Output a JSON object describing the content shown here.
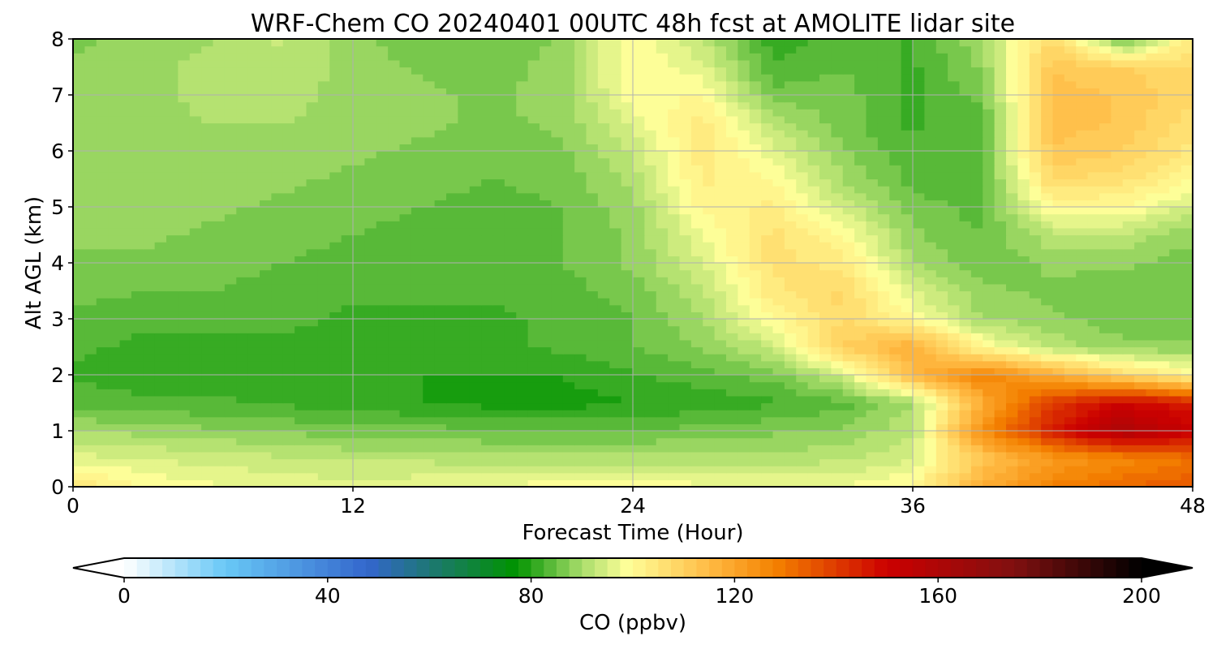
{
  "chart_data": {
    "type": "heatmap",
    "title": "WRF-Chem CO  20240401 00UTC 48h fcst at AMOLITE lidar site",
    "xlabel": "Forecast Time (Hour)",
    "ylabel": "Alt AGL (km)",
    "xlim": [
      0,
      48
    ],
    "ylim": [
      0,
      8
    ],
    "xticks": [
      "0",
      "12",
      "24",
      "36",
      "48"
    ],
    "yticks": [
      "0",
      "1",
      "2",
      "3",
      "4",
      "5",
      "6",
      "7",
      "8"
    ],
    "grid": true,
    "x": [
      0,
      3,
      6,
      9,
      12,
      15,
      18,
      21,
      24,
      27,
      30,
      33,
      36,
      39,
      42,
      45,
      48
    ],
    "y": [
      0,
      0.5,
      1,
      1.5,
      2,
      2.5,
      3,
      3.5,
      4,
      4.5,
      5,
      5.5,
      6,
      6.5,
      7,
      7.5,
      8
    ],
    "z": [
      [
        105,
        100,
        98,
        97,
        96,
        97,
        98,
        99,
        100,
        98,
        98,
        98,
        100,
        118,
        128,
        132,
        135
      ],
      [
        96,
        95,
        94,
        93,
        92,
        92,
        91,
        91,
        91,
        91,
        91,
        92,
        95,
        112,
        122,
        126,
        130
      ],
      [
        90,
        89,
        88,
        87,
        86,
        86,
        85,
        85,
        85,
        86,
        87,
        88,
        92,
        125,
        145,
        160,
        152
      ],
      [
        84,
        83,
        83,
        82,
        81,
        80,
        79,
        79,
        80,
        81,
        82,
        84,
        90,
        118,
        140,
        150,
        145
      ],
      [
        82,
        81,
        81,
        81,
        81,
        80,
        80,
        80,
        82,
        84,
        86,
        94,
        115,
        128,
        118,
        108,
        100
      ],
      [
        83,
        82,
        82,
        82,
        82,
        82,
        82,
        83,
        85,
        88,
        93,
        110,
        118,
        100,
        92,
        88,
        88
      ],
      [
        84,
        83,
        83,
        83,
        82,
        82,
        82,
        83,
        85,
        90,
        100,
        108,
        100,
        90,
        88,
        86,
        86
      ],
      [
        86,
        85,
        85,
        84,
        83,
        83,
        83,
        84,
        86,
        92,
        104,
        108,
        95,
        88,
        87,
        86,
        85
      ],
      [
        87,
        87,
        86,
        85,
        84,
        84,
        84,
        85,
        88,
        95,
        106,
        104,
        90,
        86,
        88,
        88,
        86
      ],
      [
        88,
        88,
        87,
        86,
        85,
        84,
        84,
        85,
        88,
        97,
        106,
        100,
        88,
        85,
        92,
        92,
        88
      ],
      [
        89,
        89,
        88,
        87,
        86,
        85,
        84,
        85,
        89,
        101,
        103,
        94,
        86,
        84,
        100,
        100,
        94
      ],
      [
        89,
        90,
        89,
        88,
        87,
        86,
        85,
        86,
        91,
        103,
        100,
        90,
        84,
        84,
        108,
        106,
        100
      ],
      [
        89,
        90,
        90,
        89,
        88,
        87,
        86,
        87,
        93,
        104,
        96,
        88,
        83,
        84,
        112,
        110,
        104
      ],
      [
        88,
        89,
        90,
        90,
        89,
        88,
        87,
        88,
        96,
        104,
        92,
        86,
        82,
        84,
        114,
        112,
        106
      ],
      [
        88,
        89,
        91,
        91,
        89,
        88,
        87,
        89,
        99,
        100,
        86,
        86,
        82,
        86,
        114,
        112,
        108
      ],
      [
        88,
        89,
        91,
        92,
        89,
        87,
        86,
        89,
        100,
        96,
        83,
        85,
        82,
        88,
        112,
        110,
        108
      ],
      [
        87,
        88,
        90,
        93,
        88,
        86,
        85,
        88,
        100,
        92,
        81,
        84,
        82,
        90,
        108,
        84,
        104
      ]
    ],
    "colorbar": {
      "label": "CO  (ppbv)",
      "min": 0,
      "max": 200,
      "step": 2.5,
      "ticks": [
        "0",
        "40",
        "80",
        "120",
        "160",
        "200"
      ],
      "extend": "both",
      "colors": [
        {
          "v": 0,
          "c": "#ffffff"
        },
        {
          "v": 20,
          "c": "#68c8f6"
        },
        {
          "v": 48,
          "c": "#3366cc"
        },
        {
          "v": 62,
          "c": "#1a7a66"
        },
        {
          "v": 77,
          "c": "#009300"
        },
        {
          "v": 90,
          "c": "#a9dd6b"
        },
        {
          "v": 99,
          "c": "#ffff99"
        },
        {
          "v": 115,
          "c": "#ffbb44"
        },
        {
          "v": 128,
          "c": "#f48100"
        },
        {
          "v": 150,
          "c": "#cc0000"
        },
        {
          "v": 175,
          "c": "#801010"
        },
        {
          "v": 200,
          "c": "#000000"
        }
      ]
    }
  }
}
